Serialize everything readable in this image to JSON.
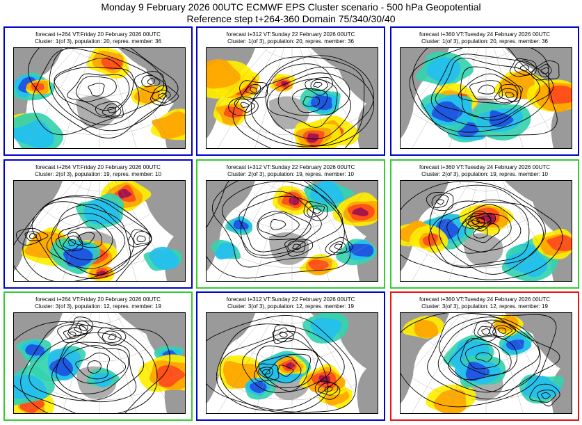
{
  "title": {
    "line1": "Monday 9 February 2026 00UTC ECMWF EPS Cluster scenario - 500 hPa Geopotential",
    "line2": "Reference step t+264-360 Domain 75/340/30/40"
  },
  "colors": {
    "blue_border": "#0000cc",
    "green_border": "#33cc33",
    "red_border": "#ee1111",
    "anomaly_strong_positive": "#a01050",
    "anomaly_positive": "#ff4a1a",
    "anomaly_weak_positive": "#ffa500",
    "anomaly_slight_positive": "#ffee00",
    "anomaly_slight_negative": "#33d4b0",
    "anomaly_negative": "#22c0f0",
    "anomaly_strong_negative": "#2050e0",
    "land": "#9a9a9a"
  },
  "panels": [
    {
      "line1": "forecast t+264 VT:Friday 20 February 2026 00UTC",
      "line2": "Cluster: 1(of 3), population: 20, repres. member: 36",
      "border": "blue"
    },
    {
      "line1": "forecast t+312 VT:Sunday 22 February 2026 00UTC",
      "line2": "Cluster: 1(of 3), population: 20, repres. member: 36",
      "border": "blue"
    },
    {
      "line1": "forecast t+360 VT:Tuesday 24 February 2026 00UTC",
      "line2": "Cluster: 1(of 3), population: 20, repres. member: 36",
      "border": "blue"
    },
    {
      "line1": "forecast t+264 VT:Friday 20 February 2026 00UTC",
      "line2": "Cluster: 2(of 3), population: 19, repres. member: 10",
      "border": "blue"
    },
    {
      "line1": "forecast t+312 VT:Sunday 22 February 2026 00UTC",
      "line2": "Cluster: 2(of 3), population: 19, repres. member: 10",
      "border": "green"
    },
    {
      "line1": "forecast t+360 VT:Tuesday 24 February 2026 00UTC",
      "line2": "Cluster: 2(of 3), population: 19, repres. member: 10",
      "border": "green"
    },
    {
      "line1": "forecast t+264 VT:Friday 20 February 2026 00UTC",
      "line2": "Cluster: 3(of 3), population: 12, repres. member: 19",
      "border": "green"
    },
    {
      "line1": "forecast t+312 VT:Sunday 22 February 2026 00UTC",
      "line2": "Cluster: 3(of 3), population: 12, repres. member: 19",
      "border": "blue"
    },
    {
      "line1": "forecast t+360 VT:Tuesday 24 February 2026 00UTC",
      "line2": "Cluster: 3(of 3), population: 12, repres. member: 19",
      "border": "red"
    }
  ]
}
